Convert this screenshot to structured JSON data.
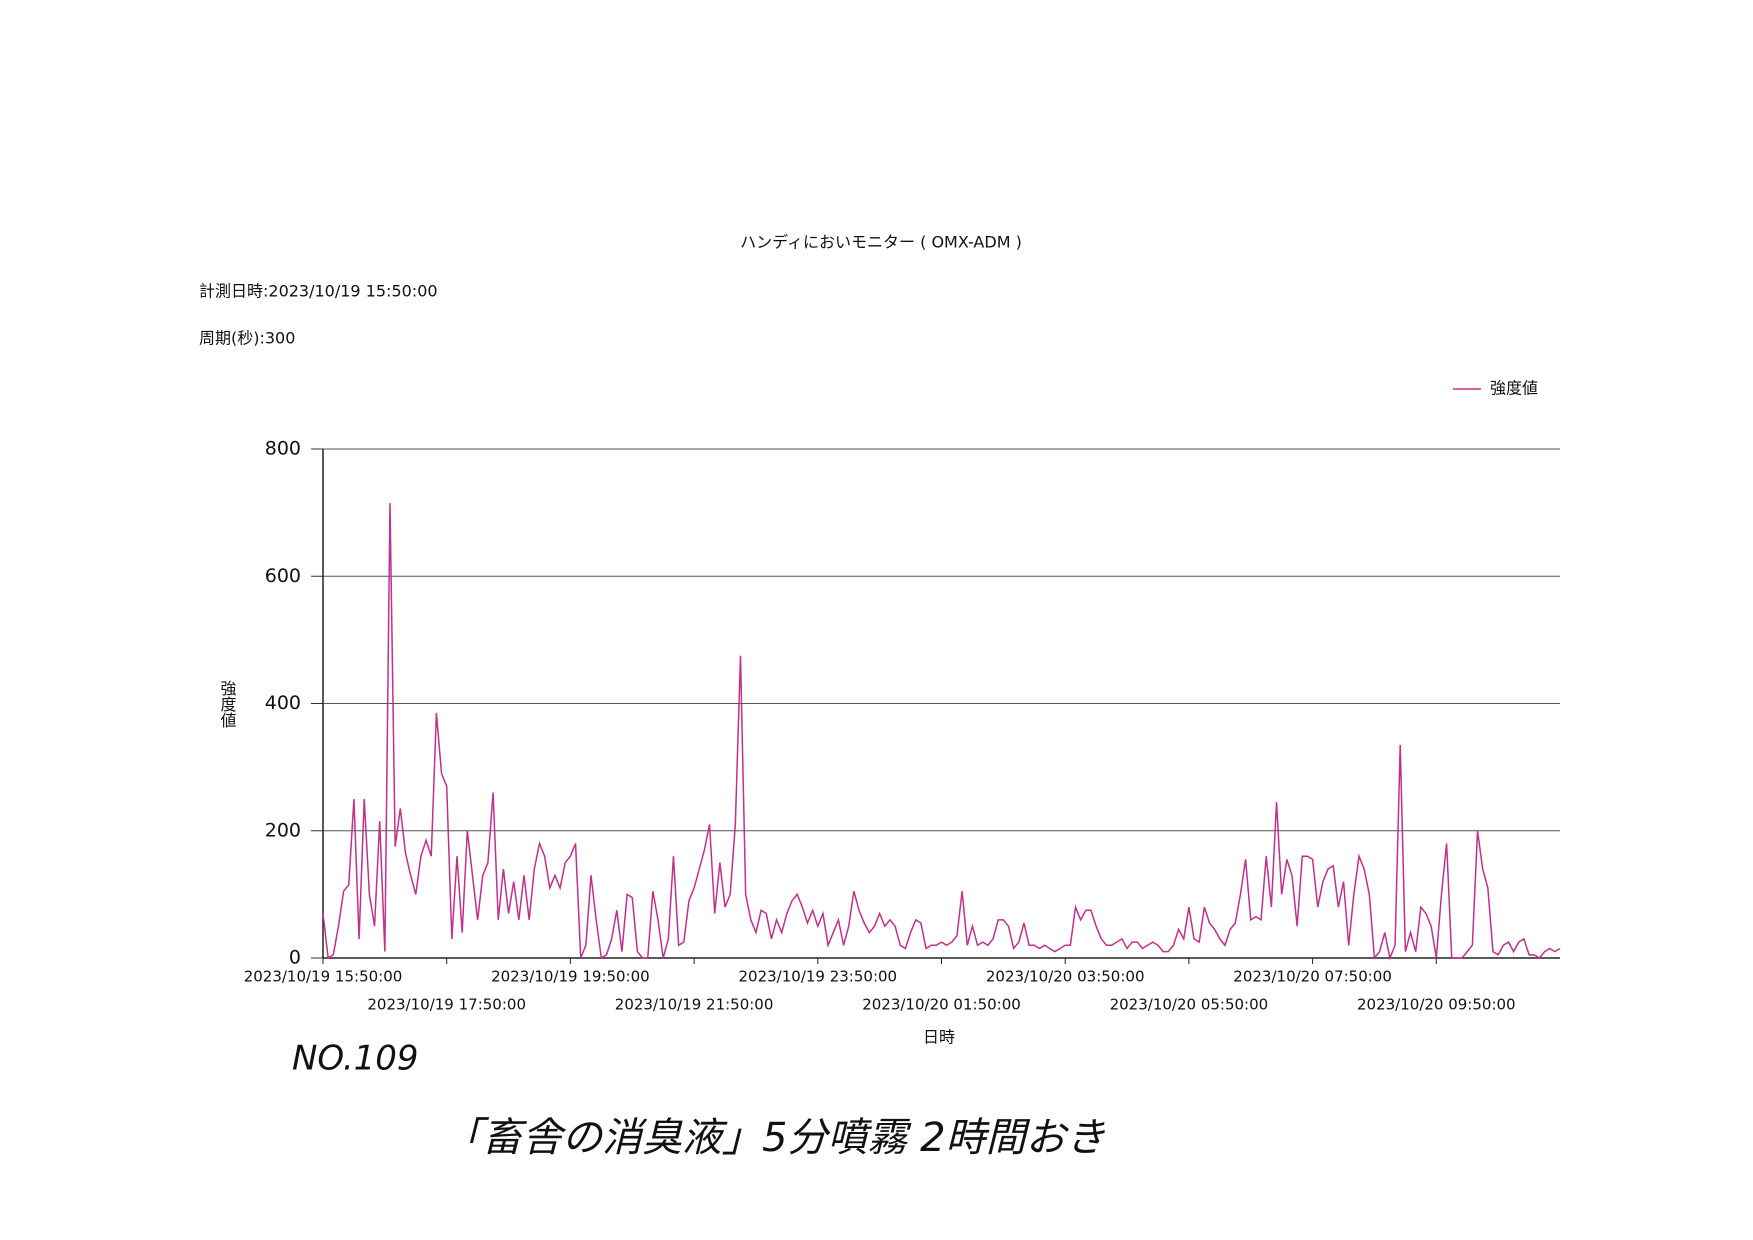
{
  "chart_data": {
    "type": "line",
    "title": "ハンディにおいモニター ( OMX-ADM )",
    "subtitle": [
      "計測日時:2023/10/19 15:50:00",
      "周期(秒):300"
    ],
    "y_label": "強度値",
    "x_label": "日時",
    "annotations": [
      "NO.109",
      "「畜舎の消臭液」5分噴霧 2時間おき"
    ],
    "categories": [
      "2023/10/19 15:50:00",
      null,
      null,
      null,
      null,
      null,
      null,
      null,
      null,
      null,
      null,
      null,
      null,
      null,
      null,
      null,
      null,
      null,
      null,
      null,
      null,
      null,
      null,
      null,
      "2023/10/19 17:50:00",
      null,
      null,
      null,
      null,
      null,
      null,
      null,
      null,
      null,
      null,
      null,
      null,
      null,
      null,
      null,
      null,
      null,
      null,
      null,
      null,
      null,
      null,
      null,
      "2023/10/19 19:50:00",
      null,
      null,
      null,
      null,
      null,
      null,
      null,
      null,
      null,
      null,
      null,
      null,
      null,
      null,
      null,
      null,
      null,
      null,
      null,
      null,
      null,
      null,
      null,
      "2023/10/19 21:50:00",
      null,
      null,
      null,
      null,
      null,
      null,
      null,
      null,
      null,
      null,
      null,
      null,
      null,
      null,
      null,
      null,
      null,
      null,
      null,
      null,
      null,
      null,
      null,
      "2023/10/19 23:50:00",
      null,
      null,
      null,
      null,
      null,
      null,
      null,
      null,
      null,
      null,
      null,
      null,
      null,
      null,
      null,
      null,
      null,
      null,
      null,
      null,
      null,
      null,
      null,
      "2023/10/20 01:50:00",
      null,
      null,
      null,
      null,
      null,
      null,
      null,
      null,
      null,
      null,
      null,
      null,
      null,
      null,
      null,
      null,
      null,
      null,
      null,
      null,
      null,
      null,
      null,
      "2023/10/20 03:50:00",
      null,
      null,
      null,
      null,
      null,
      null,
      null,
      null,
      null,
      null,
      null,
      null,
      null,
      null,
      null,
      null,
      null,
      null,
      null,
      null,
      null,
      null,
      null,
      "2023/10/20 05:50:00",
      null,
      null,
      null,
      null,
      null,
      null,
      null,
      null,
      null,
      null,
      null,
      null,
      null,
      null,
      null,
      null,
      null,
      null,
      null,
      null,
      null,
      null,
      null,
      "2023/10/20 07:50:00",
      null,
      null,
      null,
      null,
      null,
      null,
      null,
      null,
      null,
      null,
      null,
      null,
      null,
      null,
      null,
      null,
      null,
      null,
      null,
      null,
      null,
      null,
      null,
      "2023/10/20 09:50:00",
      null,
      null,
      null,
      null,
      null,
      null,
      null,
      null,
      null,
      null,
      null,
      null,
      null,
      null,
      null,
      null,
      null,
      null,
      null,
      null,
      null,
      null,
      null,
      null
    ],
    "series": [
      {
        "name": "強度値",
        "color": "#c0308c",
        "values": [
          70,
          0,
          5,
          50,
          105,
          115,
          250,
          30,
          250,
          100,
          50,
          215,
          10,
          715,
          175,
          235,
          165,
          130,
          100,
          160,
          185,
          160,
          385,
          290,
          270,
          30,
          160,
          40,
          200,
          130,
          60,
          130,
          150,
          260,
          60,
          140,
          70,
          120,
          60,
          130,
          60,
          140,
          180,
          160,
          110,
          130,
          110,
          150,
          160,
          180,
          0,
          20,
          130,
          60,
          0,
          5,
          30,
          75,
          10,
          100,
          95,
          10,
          0,
          0,
          105,
          60,
          0,
          30,
          160,
          20,
          25,
          90,
          110,
          140,
          170,
          210,
          70,
          150,
          80,
          100,
          210,
          475,
          100,
          60,
          40,
          75,
          70,
          30,
          60,
          40,
          70,
          90,
          100,
          80,
          55,
          75,
          50,
          70,
          20,
          40,
          60,
          20,
          50,
          105,
          75,
          55,
          40,
          50,
          70,
          50,
          60,
          50,
          20,
          15,
          40,
          60,
          55,
          15,
          20,
          20,
          25,
          20,
          25,
          35,
          105,
          20,
          50,
          20,
          25,
          20,
          30,
          60,
          60,
          50,
          15,
          25,
          55,
          20,
          20,
          15,
          20,
          15,
          10,
          15,
          20,
          20,
          80,
          60,
          75,
          75,
          50,
          30,
          20,
          20,
          25,
          30,
          15,
          25,
          25,
          15,
          20,
          25,
          20,
          10,
          10,
          20,
          45,
          30,
          80,
          30,
          25,
          80,
          55,
          45,
          30,
          20,
          45,
          55,
          100,
          155,
          60,
          65,
          60,
          160,
          80,
          245,
          100,
          155,
          130,
          50,
          160,
          160,
          155,
          80,
          120,
          140,
          145,
          80,
          120,
          20,
          100,
          160,
          140,
          100,
          0,
          10,
          40,
          0,
          20,
          335,
          10,
          40,
          10,
          80,
          70,
          50,
          0,
          100,
          180,
          0,
          0,
          0,
          10,
          20,
          200,
          140,
          110,
          10,
          5,
          20,
          25,
          10,
          25,
          30,
          5,
          5,
          0,
          10,
          15,
          10,
          15
        ]
      }
    ],
    "ylim": [
      0,
      800
    ],
    "yticks": [
      0,
      200,
      400,
      600,
      800
    ],
    "grid": true,
    "legend": "top-right"
  }
}
